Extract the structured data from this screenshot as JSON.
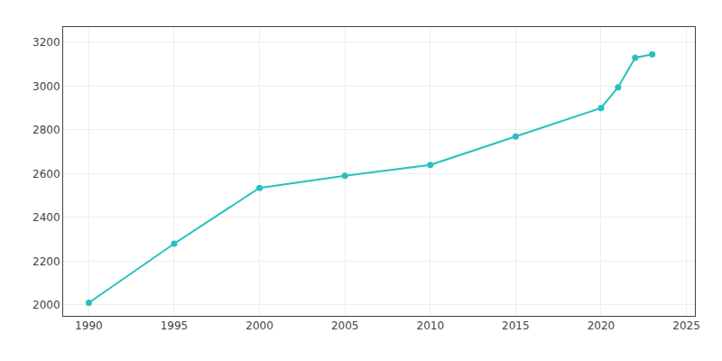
{
  "chart_data": {
    "type": "line",
    "x": [
      1990,
      1995,
      2000,
      2005,
      2010,
      2015,
      2020,
      2021,
      2022,
      2023
    ],
    "values": [
      2010,
      2280,
      2535,
      2590,
      2640,
      2770,
      2900,
      2995,
      3130,
      3145
    ],
    "color": "#2ABFBF",
    "marker": "circle",
    "xlim": [
      1988.5,
      2025.5
    ],
    "ylim": [
      1950,
      3270
    ],
    "xticks": [
      1990,
      1995,
      2000,
      2005,
      2010,
      2015,
      2020,
      2025
    ],
    "yticks": [
      2000,
      2200,
      2400,
      2600,
      2800,
      3000,
      3200
    ],
    "grid": true
  }
}
